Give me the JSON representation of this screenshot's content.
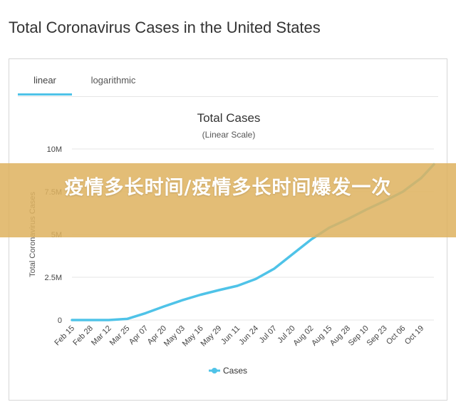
{
  "page": {
    "title": "Total Coronavirus Cases in the United States"
  },
  "tabs": [
    {
      "label": "linear",
      "active": true
    },
    {
      "label": "logarithmic",
      "active": false
    }
  ],
  "overlay": {
    "text": "疫情多长时间/疫情多长时间爆发一次"
  },
  "colors": {
    "series": "#4fc3e8",
    "active_tab": "#4fc3e8",
    "banner": "#deb260",
    "grid": "#e6e6e6"
  },
  "chart_data": {
    "type": "line",
    "title": "Total Cases",
    "subtitle": "(Linear Scale)",
    "ylabel": "Total Coronavirus Cases",
    "xlabel": "",
    "ylim": [
      0,
      10000000
    ],
    "y_ticks": [
      {
        "value": 0,
        "label": "0"
      },
      {
        "value": 2500000,
        "label": "2.5M"
      },
      {
        "value": 5000000,
        "label": "5M"
      },
      {
        "value": 7500000,
        "label": "7.5M"
      },
      {
        "value": 10000000,
        "label": "10M"
      }
    ],
    "x_tick_labels": [
      "Feb 15",
      "Feb 28",
      "Mar 12",
      "Mar 25",
      "Apr 07",
      "Apr 20",
      "May 03",
      "May 16",
      "May 29",
      "Jun 11",
      "Jun 24",
      "Jul 07",
      "Jul 20",
      "Aug 02",
      "Aug 15",
      "Aug 28",
      "Sep 10",
      "Sep 23",
      "Oct 06",
      "Oct 19"
    ],
    "grid": true,
    "legend": "bottom",
    "series": [
      {
        "name": "Cases",
        "points": [
          {
            "x": "Feb 15",
            "y": 15
          },
          {
            "x": "Feb 28",
            "y": 60
          },
          {
            "x": "Mar 12",
            "y": 1600
          },
          {
            "x": "Mar 25",
            "y": 68000
          },
          {
            "x": "Apr 07",
            "y": 400000
          },
          {
            "x": "Apr 20",
            "y": 790000
          },
          {
            "x": "May 03",
            "y": 1160000
          },
          {
            "x": "May 16",
            "y": 1480000
          },
          {
            "x": "May 29",
            "y": 1750000
          },
          {
            "x": "Jun 11",
            "y": 2000000
          },
          {
            "x": "Jun 24",
            "y": 2400000
          },
          {
            "x": "Jul 07",
            "y": 3000000
          },
          {
            "x": "Jul 20",
            "y": 3850000
          },
          {
            "x": "Aug 02",
            "y": 4700000
          },
          {
            "x": "Aug 15",
            "y": 5400000
          },
          {
            "x": "Aug 28",
            "y": 5900000
          },
          {
            "x": "Sep 10",
            "y": 6450000
          },
          {
            "x": "Sep 23",
            "y": 6950000
          },
          {
            "x": "Oct 06",
            "y": 7500000
          },
          {
            "x": "Oct 19",
            "y": 8300000
          },
          {
            "x": "Oct 28",
            "y": 9100000
          }
        ]
      }
    ]
  }
}
